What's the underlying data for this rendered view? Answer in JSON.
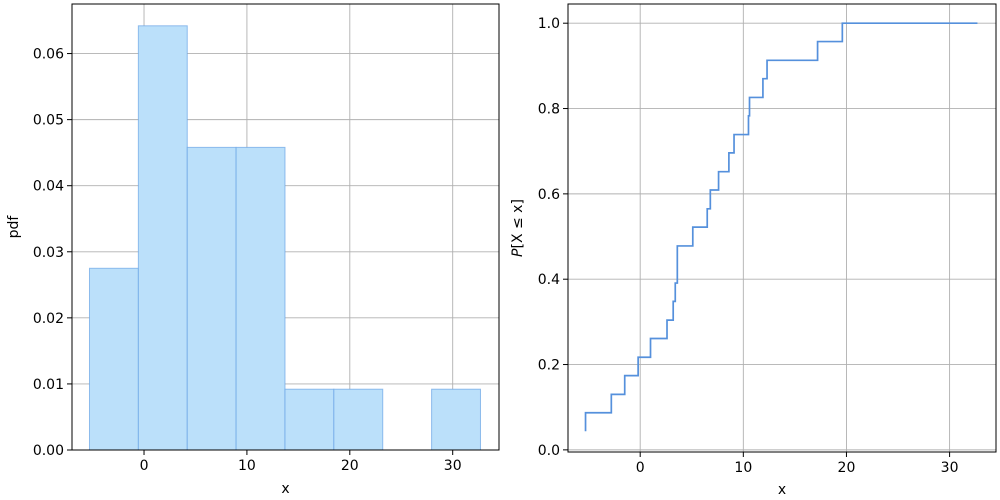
{
  "chart_data": [
    {
      "type": "bar",
      "subtype": "histogram",
      "xlabel": "x",
      "ylabel": "pdf",
      "xlim": [
        -7.0,
        34.5
      ],
      "ylim": [
        0,
        0.0675
      ],
      "xticks": [
        0,
        10,
        20,
        30
      ],
      "yticks": [
        0.0,
        0.01,
        0.02,
        0.03,
        0.04,
        0.05,
        0.06
      ],
      "ytick_labels": [
        "0.00",
        "0.01",
        "0.02",
        "0.03",
        "0.04",
        "0.05",
        "0.06"
      ],
      "grid": true,
      "bar_color": "#bbe0fa",
      "edge_color": "#6aa4e6",
      "bins": [
        {
          "x0": -5.3,
          "x1": -0.55,
          "value": 0.0275
        },
        {
          "x0": -0.55,
          "x1": 4.2,
          "value": 0.0642
        },
        {
          "x0": 4.2,
          "x1": 8.95,
          "value": 0.0458
        },
        {
          "x0": 8.95,
          "x1": 13.7,
          "value": 0.0458
        },
        {
          "x0": 13.7,
          "x1": 18.45,
          "value": 0.0092
        },
        {
          "x0": 18.45,
          "x1": 23.2,
          "value": 0.0092
        },
        {
          "x0": 23.2,
          "x1": 27.95,
          "value": 0.0
        },
        {
          "x0": 27.95,
          "x1": 32.7,
          "value": 0.0092
        }
      ]
    },
    {
      "type": "line",
      "subtype": "step-ecdf",
      "xlabel": "x",
      "ylabel_prefix": "P",
      "ylabel_body": "[X ≤ x]",
      "xlim": [
        -7.0,
        34.5
      ],
      "ylim": [
        -0.005,
        1.045
      ],
      "xticks": [
        0,
        10,
        20,
        30
      ],
      "yticks": [
        0.0,
        0.2,
        0.4,
        0.6,
        0.8,
        1.0
      ],
      "ytick_labels": [
        "0.0",
        "0.2",
        "0.4",
        "0.6",
        "0.8",
        "1.0"
      ],
      "grid": true,
      "line_color": "#5590dc",
      "steps": [
        [
          -5.3,
          0.0435
        ],
        [
          -5.3,
          0.087
        ],
        [
          -2.8,
          0.087
        ],
        [
          -2.8,
          0.13
        ],
        [
          -1.5,
          0.13
        ],
        [
          -1.5,
          0.174
        ],
        [
          -0.2,
          0.174
        ],
        [
          -0.2,
          0.217
        ],
        [
          1.0,
          0.217
        ],
        [
          1.0,
          0.261
        ],
        [
          2.6,
          0.261
        ],
        [
          2.6,
          0.304
        ],
        [
          3.2,
          0.304
        ],
        [
          3.2,
          0.348
        ],
        [
          3.4,
          0.348
        ],
        [
          3.4,
          0.391
        ],
        [
          3.6,
          0.391
        ],
        [
          3.6,
          0.478
        ],
        [
          5.1,
          0.478
        ],
        [
          5.1,
          0.522
        ],
        [
          6.5,
          0.522
        ],
        [
          6.5,
          0.565
        ],
        [
          6.8,
          0.565
        ],
        [
          6.8,
          0.609
        ],
        [
          7.6,
          0.609
        ],
        [
          7.6,
          0.652
        ],
        [
          8.6,
          0.652
        ],
        [
          8.6,
          0.696
        ],
        [
          9.1,
          0.696
        ],
        [
          9.1,
          0.739
        ],
        [
          10.5,
          0.739
        ],
        [
          10.5,
          0.783
        ],
        [
          10.6,
          0.783
        ],
        [
          10.6,
          0.826
        ],
        [
          11.9,
          0.826
        ],
        [
          11.9,
          0.87
        ],
        [
          12.3,
          0.87
        ],
        [
          12.3,
          0.913
        ],
        [
          17.2,
          0.913
        ],
        [
          17.2,
          0.957
        ],
        [
          19.6,
          0.957
        ],
        [
          19.6,
          1.0
        ],
        [
          32.7,
          1.0
        ]
      ]
    }
  ]
}
